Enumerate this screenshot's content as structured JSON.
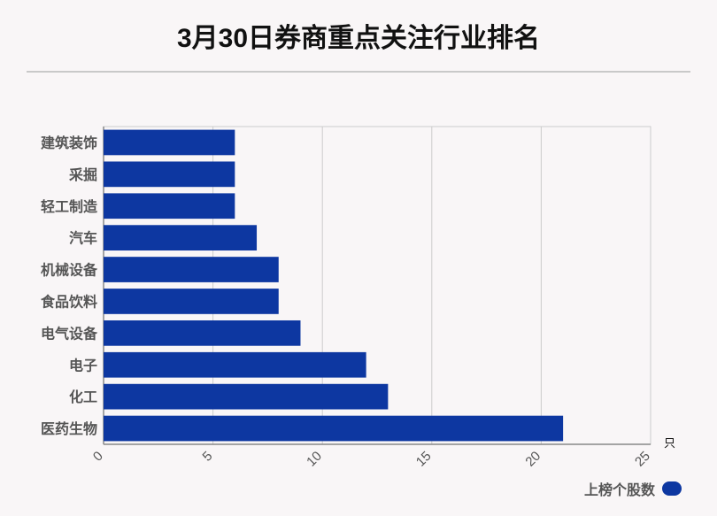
{
  "title": "3月30日券商重点关注行业排名",
  "colors": {
    "bar": "#0d37a1",
    "grid": "#cccccc",
    "axis": "#888888"
  },
  "chart_data": {
    "type": "bar",
    "orientation": "horizontal",
    "categories": [
      "建筑装饰",
      "采掘",
      "轻工制造",
      "汽车",
      "机械设备",
      "食品饮料",
      "电气设备",
      "电子",
      "化工",
      "医药生物"
    ],
    "series": [
      {
        "name": "上榜个股数",
        "values": [
          6,
          6,
          6,
          7,
          8,
          8,
          9,
          12,
          13,
          21
        ]
      }
    ],
    "xlim": [
      0,
      25
    ],
    "xticks": [
      0,
      5,
      10,
      15,
      20,
      25
    ],
    "x_unit": "只",
    "grid": true,
    "legend": "bottom-right"
  }
}
